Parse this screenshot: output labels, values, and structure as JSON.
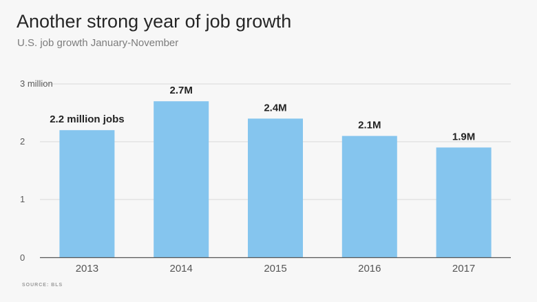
{
  "header": {
    "title": "Another strong year of job growth",
    "subtitle": "U.S. job growth January-November"
  },
  "footer": {
    "source": "SOURCE: BLS"
  },
  "colors": {
    "bar": "#85c5ee",
    "grid": "#d9d9d9",
    "baseline": "#555555",
    "background": "#f7f7f7"
  },
  "chart_data": {
    "type": "bar",
    "title": "Another strong year of job growth",
    "subtitle": "U.S. job growth January-November",
    "xlabel": "",
    "ylabel": "",
    "categories": [
      "2013",
      "2014",
      "2015",
      "2016",
      "2017"
    ],
    "values": [
      2.2,
      2.7,
      2.4,
      2.1,
      1.9
    ],
    "data_labels": [
      "2.2 million jobs",
      "2.7M",
      "2.4M",
      "2.1M",
      "1.9M"
    ],
    "ylim": [
      0,
      3
    ],
    "yticks": [
      0,
      1,
      2,
      3
    ],
    "ytick_labels": [
      "0",
      "1",
      "2",
      "3 million"
    ],
    "grid": true,
    "legend": "none"
  }
}
